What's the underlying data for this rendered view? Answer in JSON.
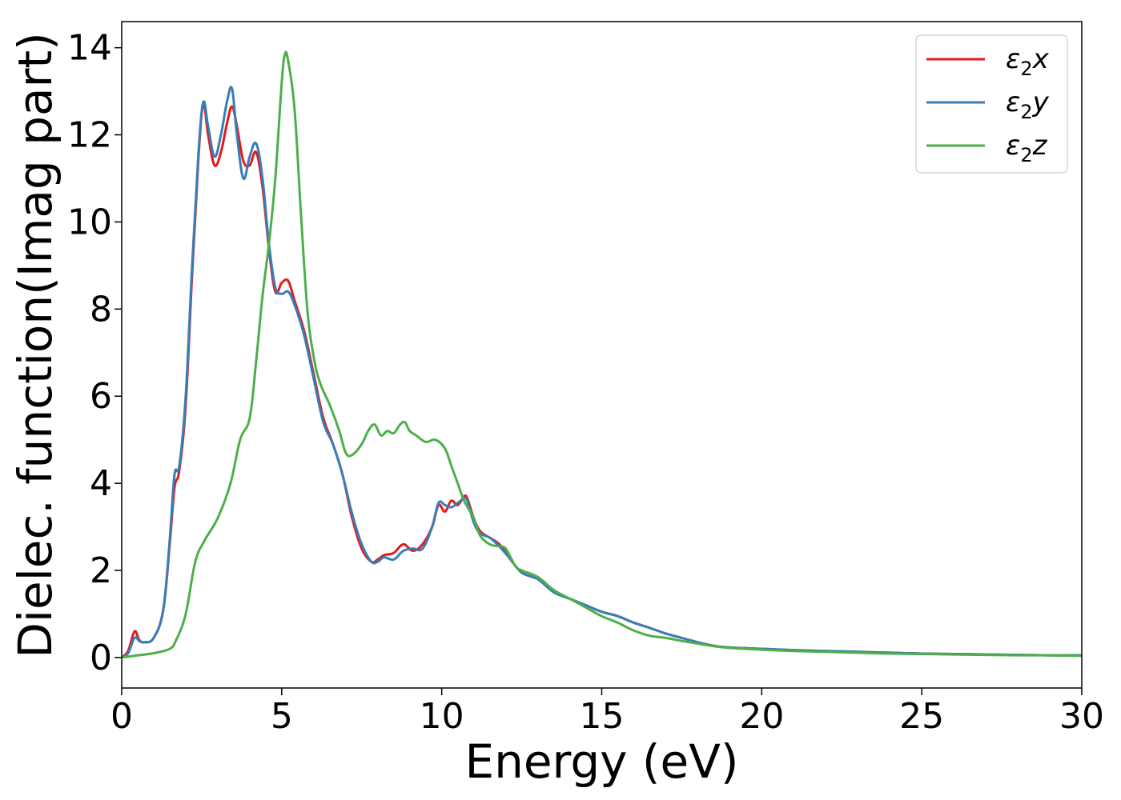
{
  "chart_data": {
    "type": "line",
    "xlabel": "Energy (eV)",
    "ylabel": "Dielec. function(Imag part)",
    "xlim": [
      0,
      30
    ],
    "ylim": [
      -0.7,
      14.6
    ],
    "xticks": [
      "0",
      "5",
      "10",
      "15",
      "20",
      "25",
      "30"
    ],
    "yticks": [
      "0",
      "2",
      "4",
      "6",
      "8",
      "10",
      "12",
      "14"
    ],
    "grid": false,
    "legend_position": "top-right",
    "series": [
      {
        "name": "ε2x",
        "legend_base": "ε",
        "legend_sub": "2",
        "legend_suffix": "x",
        "color": "#e41a1c",
        "x": [
          0,
          0.2,
          0.4,
          0.55,
          0.7,
          1.0,
          1.3,
          1.5,
          1.65,
          1.8,
          2.0,
          2.2,
          2.4,
          2.55,
          2.7,
          2.9,
          3.1,
          3.3,
          3.45,
          3.6,
          3.8,
          4.0,
          4.2,
          4.4,
          4.6,
          4.8,
          5.0,
          5.2,
          5.4,
          5.7,
          6.0,
          6.3,
          6.6,
          6.9,
          7.2,
          7.5,
          7.8,
          8.0,
          8.2,
          8.5,
          8.8,
          9.1,
          9.4,
          9.7,
          9.9,
          10.1,
          10.3,
          10.5,
          10.7,
          10.8,
          11.0,
          11.2,
          11.5,
          11.8,
          12.1,
          12.5,
          13.0,
          13.5,
          14.0,
          14.5,
          15.0,
          15.5,
          16.0,
          16.5,
          17.0,
          17.5,
          18.0,
          18.5,
          19.0,
          20.0,
          21.0,
          22.0,
          23.0,
          24.0,
          25.0,
          26.0,
          27.0,
          28.0,
          29.0,
          30.0
        ],
        "y": [
          0.0,
          0.15,
          0.6,
          0.4,
          0.35,
          0.45,
          1.1,
          2.6,
          3.9,
          4.3,
          5.8,
          8.8,
          11.5,
          12.7,
          12.0,
          11.3,
          11.6,
          12.3,
          12.65,
          12.2,
          11.4,
          11.3,
          11.6,
          10.8,
          9.4,
          8.4,
          8.6,
          8.65,
          8.2,
          7.5,
          6.5,
          5.5,
          4.9,
          4.2,
          3.2,
          2.5,
          2.2,
          2.25,
          2.35,
          2.4,
          2.6,
          2.45,
          2.6,
          3.0,
          3.5,
          3.35,
          3.6,
          3.5,
          3.7,
          3.65,
          3.2,
          2.9,
          2.75,
          2.6,
          2.3,
          1.95,
          1.8,
          1.5,
          1.35,
          1.2,
          1.05,
          0.95,
          0.8,
          0.68,
          0.55,
          0.45,
          0.35,
          0.27,
          0.23,
          0.2,
          0.17,
          0.15,
          0.13,
          0.11,
          0.09,
          0.08,
          0.07,
          0.06,
          0.05,
          0.05
        ]
      },
      {
        "name": "ε2y",
        "legend_base": "ε",
        "legend_sub": "2",
        "legend_suffix": "y",
        "color": "#377eb8",
        "x": [
          0,
          0.2,
          0.4,
          0.55,
          0.7,
          1.0,
          1.3,
          1.5,
          1.65,
          1.8,
          2.0,
          2.2,
          2.4,
          2.55,
          2.7,
          2.9,
          3.1,
          3.3,
          3.45,
          3.6,
          3.8,
          4.0,
          4.2,
          4.4,
          4.6,
          4.8,
          5.0,
          5.2,
          5.4,
          5.7,
          6.0,
          6.3,
          6.6,
          6.9,
          7.2,
          7.5,
          7.8,
          8.0,
          8.2,
          8.5,
          8.8,
          9.1,
          9.4,
          9.7,
          9.9,
          10.1,
          10.3,
          10.5,
          10.7,
          10.8,
          11.0,
          11.2,
          11.5,
          11.8,
          12.1,
          12.5,
          13.0,
          13.5,
          14.0,
          14.5,
          15.0,
          15.5,
          16.0,
          16.5,
          17.0,
          17.5,
          18.0,
          18.5,
          19.0,
          20.0,
          21.0,
          22.0,
          23.0,
          24.0,
          25.0,
          26.0,
          27.0,
          28.0,
          29.0,
          30.0
        ],
        "y": [
          0.0,
          0.1,
          0.45,
          0.38,
          0.35,
          0.45,
          1.1,
          2.7,
          4.2,
          4.4,
          6.0,
          9.0,
          11.6,
          12.75,
          12.2,
          11.5,
          12.0,
          12.8,
          13.05,
          12.0,
          11.0,
          11.5,
          11.8,
          11.0,
          9.5,
          8.5,
          8.35,
          8.4,
          8.1,
          7.4,
          6.4,
          5.4,
          4.9,
          4.2,
          3.3,
          2.6,
          2.2,
          2.2,
          2.3,
          2.25,
          2.45,
          2.5,
          2.5,
          3.0,
          3.55,
          3.5,
          3.45,
          3.55,
          3.65,
          3.6,
          3.1,
          2.85,
          2.75,
          2.55,
          2.3,
          1.95,
          1.8,
          1.5,
          1.35,
          1.2,
          1.05,
          0.95,
          0.8,
          0.68,
          0.55,
          0.45,
          0.35,
          0.27,
          0.23,
          0.2,
          0.17,
          0.15,
          0.13,
          0.11,
          0.09,
          0.08,
          0.07,
          0.06,
          0.05,
          0.05
        ]
      },
      {
        "name": "ε2z",
        "legend_base": "ε",
        "legend_sub": "2",
        "legend_suffix": "z",
        "color": "#4daf4a",
        "x": [
          0,
          0.5,
          1.0,
          1.5,
          1.7,
          2.0,
          2.3,
          2.6,
          3.0,
          3.4,
          3.7,
          4.0,
          4.2,
          4.4,
          4.6,
          4.8,
          5.0,
          5.1,
          5.2,
          5.4,
          5.6,
          5.8,
          6.0,
          6.2,
          6.5,
          6.8,
          7.0,
          7.2,
          7.5,
          7.7,
          7.9,
          8.1,
          8.3,
          8.5,
          8.7,
          8.85,
          9.0,
          9.2,
          9.5,
          9.8,
          10.1,
          10.3,
          10.5,
          10.7,
          11.0,
          11.2,
          11.5,
          11.8,
          12.0,
          12.3,
          12.5,
          13.0,
          13.5,
          14.0,
          14.5,
          15.0,
          15.5,
          16.0,
          16.5,
          17.0,
          17.5,
          18.0,
          18.5,
          19.0,
          20.0,
          21.0,
          22.0,
          23.0,
          24.0,
          25.0,
          26.0,
          27.0,
          28.0,
          29.0,
          30.0
        ],
        "y": [
          0.0,
          0.05,
          0.1,
          0.2,
          0.4,
          1.0,
          2.2,
          2.7,
          3.2,
          4.0,
          5.0,
          5.5,
          6.8,
          8.3,
          9.5,
          11.0,
          13.2,
          13.85,
          13.7,
          12.6,
          10.2,
          8.0,
          6.9,
          6.3,
          5.8,
          5.2,
          4.7,
          4.65,
          4.9,
          5.2,
          5.35,
          5.1,
          5.2,
          5.15,
          5.35,
          5.4,
          5.2,
          5.1,
          4.95,
          5.0,
          4.8,
          4.4,
          4.0,
          3.6,
          3.2,
          2.8,
          2.6,
          2.55,
          2.5,
          2.1,
          2.0,
          1.85,
          1.55,
          1.35,
          1.15,
          0.95,
          0.8,
          0.62,
          0.5,
          0.45,
          0.38,
          0.32,
          0.26,
          0.22,
          0.18,
          0.15,
          0.13,
          0.11,
          0.09,
          0.08,
          0.07,
          0.06,
          0.05,
          0.05,
          0.04
        ]
      }
    ]
  }
}
